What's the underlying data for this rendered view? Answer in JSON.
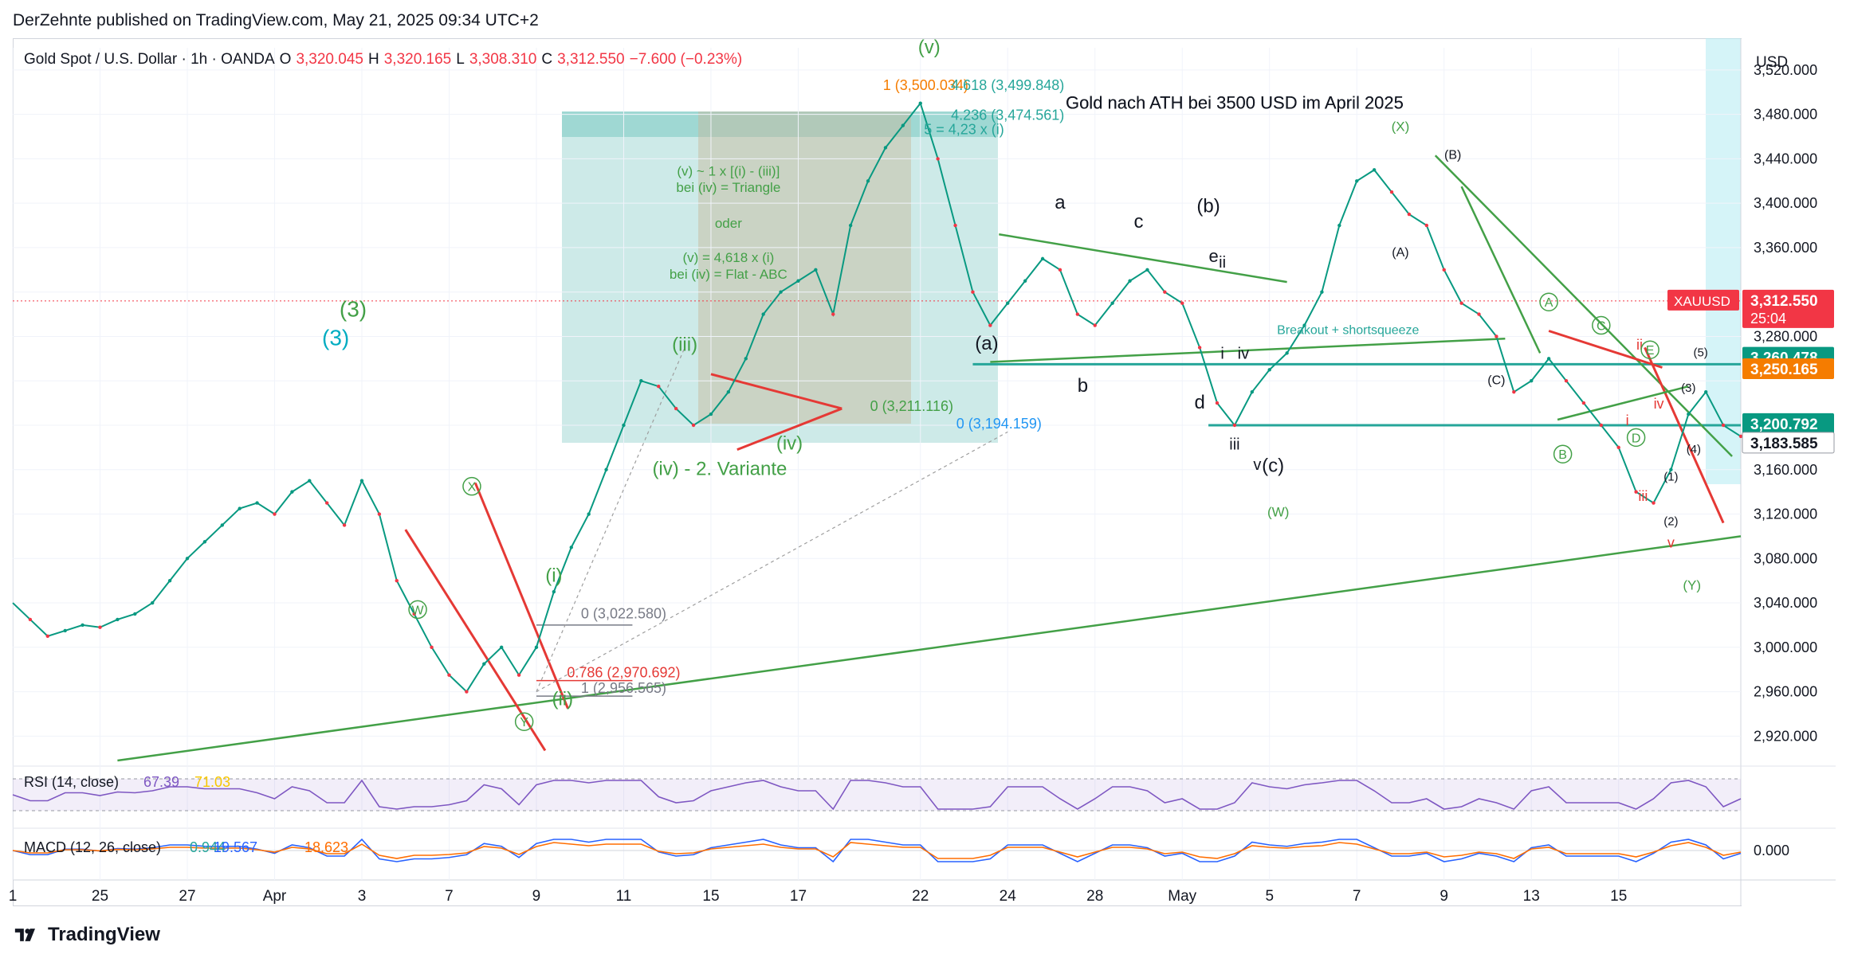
{
  "header": {
    "publish_line": "DerZehnte published on TradingView.com, May 21, 2025 09:34 UTC+2"
  },
  "legend": {
    "symbol": "Gold Spot / U.S. Dollar · 1h · OANDA",
    "o_label": "O",
    "o_value": "3,320.045",
    "h_label": "H",
    "h_value": "3,320.165",
    "l_label": "L",
    "l_value": "3,308.310",
    "c_label": "C",
    "c_value": "3,312.550",
    "change": "−7.600 (−0.23%)"
  },
  "footer": {
    "brand": "TradingView"
  },
  "colors": {
    "up": "#089981",
    "down": "#f23645",
    "green": "#43a047",
    "teal": "#26a69a",
    "red": "#e53935",
    "blue": "#2196f3",
    "black": "#131722"
  },
  "chart_data": {
    "type": "line",
    "title": "Gold nach ATH bei 3500 USD im April 2025",
    "currency_label": "USD",
    "y_ticks": [
      2920,
      2960,
      3000,
      3040,
      3080,
      3120,
      3160,
      3200,
      3240,
      3280,
      3320,
      3360,
      3400,
      3440,
      3480,
      3520
    ],
    "y_tick_labels": [
      "2,920.000",
      "2,960.000",
      "3,000.000",
      "3,040.000",
      "3,080.000",
      "3,120.000",
      "3,160.000",
      "",
      "",
      "3,280.000",
      "",
      "3,360.000",
      "3,400.000",
      "3,440.000",
      "3,480.000",
      "3,520.000"
    ],
    "ylim": [
      2898,
      3540
    ],
    "x_ticks": [
      "1",
      "25",
      "27",
      "Apr",
      "3",
      "7",
      "9",
      "11",
      "15",
      "17",
      "22",
      "24",
      "28",
      "May",
      "5",
      "7",
      "9",
      "13",
      "15"
    ],
    "x_tick_positions": [
      0,
      5,
      10,
      15,
      20,
      25,
      30,
      35,
      40,
      45,
      52,
      57,
      62,
      67,
      72,
      77,
      82,
      87,
      92
    ],
    "xlim": [
      0,
      99
    ],
    "x": [
      0,
      1,
      2,
      3,
      4,
      5,
      6,
      7,
      8,
      9,
      10,
      11,
      12,
      13,
      14,
      15,
      16,
      17,
      18,
      19,
      20,
      21,
      22,
      23,
      24,
      25,
      26,
      27,
      28,
      29,
      30,
      31,
      32,
      33,
      34,
      35,
      36,
      37,
      38,
      39,
      40,
      41,
      42,
      43,
      44,
      45,
      46,
      47,
      48,
      49,
      50,
      51,
      52,
      53,
      54,
      55,
      56,
      57,
      58,
      59,
      60,
      61,
      62,
      63,
      64,
      65,
      66,
      67,
      68,
      69,
      70,
      71,
      72,
      73,
      74,
      75,
      76,
      77,
      78,
      79,
      80,
      81,
      82,
      83,
      84,
      85,
      86,
      87,
      88,
      89,
      90,
      91,
      92,
      93,
      94,
      95,
      96,
      97,
      98,
      99
    ],
    "price": [
      3040,
      3025,
      3010,
      3015,
      3020,
      3018,
      3025,
      3030,
      3040,
      3060,
      3080,
      3095,
      3110,
      3125,
      3130,
      3120,
      3140,
      3150,
      3130,
      3110,
      3150,
      3120,
      3060,
      3030,
      3000,
      2975,
      2960,
      2985,
      3000,
      2975,
      3000,
      3050,
      3090,
      3120,
      3160,
      3200,
      3240,
      3235,
      3215,
      3200,
      3210,
      3230,
      3260,
      3300,
      3320,
      3330,
      3340,
      3300,
      3380,
      3420,
      3450,
      3470,
      3490,
      3440,
      3380,
      3320,
      3290,
      3310,
      3330,
      3350,
      3340,
      3300,
      3290,
      3310,
      3330,
      3340,
      3320,
      3310,
      3270,
      3220,
      3200,
      3230,
      3250,
      3265,
      3290,
      3320,
      3380,
      3420,
      3430,
      3410,
      3390,
      3380,
      3340,
      3310,
      3300,
      3280,
      3230,
      3240,
      3260,
      3240,
      3220,
      3200,
      3180,
      3140,
      3130,
      3160,
      3210,
      3230,
      3200,
      3190
    ],
    "indicators": {
      "rsi_label": "RSI (14, close)",
      "rsi_value": "67.39",
      "rsi_ma": "71.03",
      "macd_label": "MACD (12, 26, close)",
      "macd_a": "0.944",
      "macd_b": "19.567",
      "macd_c": "18.623",
      "macd_zero_label": "0.000"
    },
    "price_badges": [
      {
        "label": "XAUUSD",
        "value": "3,312.550",
        "sub": "25:04",
        "color": "#f23645"
      },
      {
        "value": "3,260.478",
        "color": "#089981"
      },
      {
        "value": "3,250.165",
        "color": "#f57c00"
      },
      {
        "value": "3,200.792",
        "color": "#089981"
      },
      {
        "value": "3,183.585",
        "color": "#d1d4dc"
      }
    ],
    "annotations": [
      {
        "text": "(v)",
        "x": 52.5,
        "y": 3535,
        "color": "green",
        "size": 24
      },
      {
        "text": "1 (3,500.034)",
        "x": 52.3,
        "y": 3502,
        "color": "#f57c00",
        "size": 18
      },
      {
        "text": "4.618 (3,499.848)",
        "x": 57.0,
        "y": 3502,
        "color": "teal",
        "size": 18
      },
      {
        "text": "4.236 (3,474.561)",
        "x": 57.0,
        "y": 3475,
        "color": "teal",
        "size": 18
      },
      {
        "text": "5 = 4,23 x (i)",
        "x": 54.5,
        "y": 3462,
        "color": "teal",
        "size": 18
      },
      {
        "text": "(v) ~ 1 x [(i) - (iii)]",
        "x": 41.0,
        "y": 3425,
        "color": "green",
        "size": 17
      },
      {
        "text": "bei (iv) = Triangle",
        "x": 41.0,
        "y": 3410,
        "color": "green",
        "size": 17
      },
      {
        "text": "oder",
        "x": 41.0,
        "y": 3378,
        "color": "green",
        "size": 17
      },
      {
        "text": "(v) = 4,618 x (i)",
        "x": 41.0,
        "y": 3347,
        "color": "green",
        "size": 17
      },
      {
        "text": "bei (iv) = Flat - ABC",
        "x": 41.0,
        "y": 3332,
        "color": "green",
        "size": 17
      },
      {
        "text": "Gold nach ATH bei 3500 USD im April 2025",
        "x": 70.0,
        "y": 3485,
        "color": "black",
        "size": 22
      },
      {
        "text": "(X)",
        "x": 79.5,
        "y": 3465,
        "color": "green",
        "size": 17
      },
      {
        "text": "(B)",
        "x": 82.5,
        "y": 3440,
        "color": "black",
        "size": 16
      },
      {
        "text": "(A)",
        "x": 79.5,
        "y": 3352,
        "color": "black",
        "size": 16
      },
      {
        "text": "Breakout + shortsqueeze",
        "x": 76.5,
        "y": 3282,
        "color": "teal",
        "size": 16
      },
      {
        "text": "(C)",
        "x": 85.0,
        "y": 3237,
        "color": "black",
        "size": 16
      },
      {
        "text": "a",
        "x": 60.0,
        "y": 3395,
        "color": "black",
        "size": 24
      },
      {
        "text": "c",
        "x": 64.5,
        "y": 3378,
        "color": "black",
        "size": 24
      },
      {
        "text": "(b)",
        "x": 68.5,
        "y": 3392,
        "color": "black",
        "size": 24
      },
      {
        "text": "e",
        "x": 68.8,
        "y": 3347,
        "color": "black",
        "size": 22
      },
      {
        "text": "ii",
        "x": 69.3,
        "y": 3342,
        "color": "black",
        "size": 20
      },
      {
        "text": "(a)",
        "x": 55.8,
        "y": 3268,
        "color": "black",
        "size": 24
      },
      {
        "text": "b",
        "x": 61.3,
        "y": 3230,
        "color": "black",
        "size": 24
      },
      {
        "text": "i",
        "x": 69.3,
        "y": 3260,
        "color": "black",
        "size": 20
      },
      {
        "text": "iv",
        "x": 70.5,
        "y": 3260,
        "color": "black",
        "size": 20
      },
      {
        "text": "d",
        "x": 68.0,
        "y": 3215,
        "color": "black",
        "size": 24
      },
      {
        "text": "iii",
        "x": 70.0,
        "y": 3178,
        "color": "black",
        "size": 20
      },
      {
        "text": "v",
        "x": 71.3,
        "y": 3160,
        "color": "black",
        "size": 20
      },
      {
        "text": "(c)",
        "x": 72.2,
        "y": 3158,
        "color": "black",
        "size": 24
      },
      {
        "text": "(W)",
        "x": 72.5,
        "y": 3118,
        "color": "green",
        "size": 17
      },
      {
        "text": "(3)",
        "x": 19.5,
        "y": 3298,
        "color": "green",
        "size": 28
      },
      {
        "text": "(3)",
        "x": 18.5,
        "y": 3272,
        "color": "#00acc1",
        "size": 28
      },
      {
        "text": "(iii)",
        "x": 38.5,
        "y": 3267,
        "color": "green",
        "size": 24
      },
      {
        "text": "(iv)",
        "x": 44.5,
        "y": 3178,
        "color": "green",
        "size": 24
      },
      {
        "text": "(iv) - 2. Variante",
        "x": 40.5,
        "y": 3155,
        "color": "green",
        "size": 24
      },
      {
        "text": "(i)",
        "x": 31.0,
        "y": 3059,
        "color": "green",
        "size": 24
      },
      {
        "text": "(ii)",
        "x": 31.5,
        "y": 2948,
        "color": "green",
        "size": 24
      },
      {
        "text": "0 (3,022.580)",
        "x": 35.0,
        "y": 3026,
        "color": "#787b86",
        "size": 18
      },
      {
        "text": "0.786 (2,970.692)",
        "x": 35.0,
        "y": 2973,
        "color": "#e53935",
        "size": 18
      },
      {
        "text": "1 (2,956.565)",
        "x": 35.0,
        "y": 2959,
        "color": "#787b86",
        "size": 18
      },
      {
        "text": "0 (3,211.116)",
        "x": 51.5,
        "y": 3213,
        "color": "#43a047",
        "size": 18
      },
      {
        "text": "0 (3,194.159)",
        "x": 56.5,
        "y": 3197,
        "color": "#2196f3",
        "size": 18
      },
      {
        "text": "(5)",
        "x": 96.7,
        "y": 3262,
        "color": "black",
        "size": 15
      },
      {
        "text": "(3)",
        "x": 96.0,
        "y": 3230,
        "color": "black",
        "size": 15
      },
      {
        "text": "(4)",
        "x": 96.3,
        "y": 3175,
        "color": "black",
        "size": 15
      },
      {
        "text": "(1)",
        "x": 95.0,
        "y": 3150,
        "color": "black",
        "size": 15
      },
      {
        "text": "(2)",
        "x": 95.0,
        "y": 3110,
        "color": "black",
        "size": 15
      },
      {
        "text": "ii",
        "x": 93.2,
        "y": 3268,
        "color": "#e53935",
        "size": 18
      },
      {
        "text": "iv",
        "x": 94.3,
        "y": 3215,
        "color": "#e53935",
        "size": 18
      },
      {
        "text": "i",
        "x": 92.5,
        "y": 3200,
        "color": "#e53935",
        "size": 18
      },
      {
        "text": "iii",
        "x": 93.4,
        "y": 3132,
        "color": "#e53935",
        "size": 18
      },
      {
        "text": "v",
        "x": 95.0,
        "y": 3090,
        "color": "#e53935",
        "size": 18
      },
      {
        "text": "(Y)",
        "x": 96.2,
        "y": 3052,
        "color": "green",
        "size": 17
      }
    ],
    "circled_labels": [
      {
        "text": "X",
        "x": 26.3,
        "y": 3145,
        "color": "green"
      },
      {
        "text": "W",
        "x": 23.2,
        "y": 3034,
        "color": "green"
      },
      {
        "text": "Y",
        "x": 29.3,
        "y": 2933,
        "color": "green"
      },
      {
        "text": "A",
        "x": 88.0,
        "y": 3311,
        "color": "green"
      },
      {
        "text": "C",
        "x": 91.0,
        "y": 3290,
        "color": "green"
      },
      {
        "text": "B",
        "x": 88.8,
        "y": 3174,
        "color": "green"
      },
      {
        "text": "D",
        "x": 93.0,
        "y": 3189,
        "color": "green"
      },
      {
        "text": "E",
        "x": 93.8,
        "y": 3268,
        "color": "green"
      }
    ]
  }
}
